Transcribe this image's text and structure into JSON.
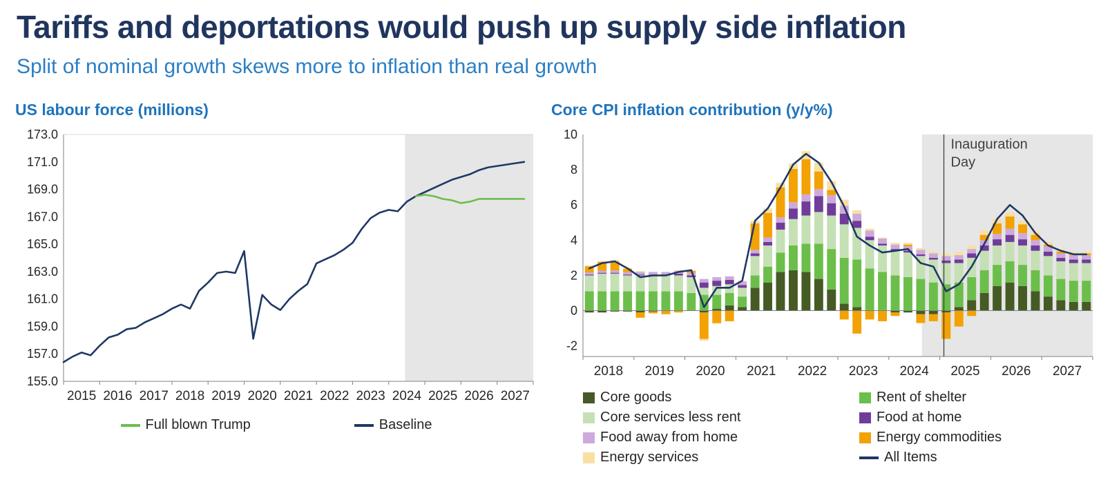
{
  "page": {
    "title": "Tariffs and deportations would push up supply side inflation",
    "subtitle": "Split of nominal growth skews more to inflation than real growth"
  },
  "colors": {
    "heading": "#20355E",
    "subtitle": "#2B7FC4",
    "chart_title": "#1F74BC",
    "forecast_shade": "#E6E6E6",
    "axis": "#808080",
    "tick_text": "#262626",
    "annotation_text": "#3F3F3F",
    "gridline": "#D9D9D9"
  },
  "chart_data": [
    {
      "type": "line",
      "title": "US labour force (millions)",
      "ylim": [
        155,
        173
      ],
      "y_ticks": [
        155,
        157,
        159,
        161,
        163,
        165,
        167,
        169,
        171,
        173
      ],
      "y_tick_decimals": 1,
      "x_range": [
        2015,
        2028
      ],
      "x_ticks": [
        2015,
        2016,
        2017,
        2018,
        2019,
        2020,
        2021,
        2022,
        2023,
        2024,
        2025,
        2026,
        2027
      ],
      "x_start": 2015,
      "x_step": 0.25,
      "forecast_start": 2024.45,
      "grid": "off",
      "legend_position": "bottom",
      "series": [
        {
          "name": "Full blown Trump",
          "color": "#6CBE4B",
          "values": [
            null,
            null,
            null,
            null,
            null,
            null,
            null,
            null,
            null,
            null,
            null,
            null,
            null,
            null,
            null,
            null,
            null,
            null,
            null,
            null,
            null,
            null,
            null,
            null,
            null,
            null,
            null,
            null,
            null,
            null,
            null,
            null,
            null,
            null,
            null,
            null,
            null,
            null,
            null,
            168.5,
            168.6,
            168.5,
            168.3,
            168.2,
            168.0,
            168.1,
            168.3,
            168.3,
            168.3,
            168.3,
            168.3,
            168.3
          ]
        },
        {
          "name": "Baseline",
          "color": "#1F3864",
          "values": [
            156.4,
            156.8,
            157.1,
            156.9,
            157.6,
            158.2,
            158.4,
            158.8,
            158.9,
            159.3,
            159.6,
            159.9,
            160.3,
            160.6,
            160.3,
            161.6,
            162.2,
            162.9,
            163.0,
            162.9,
            164.5,
            158.1,
            161.3,
            160.6,
            160.2,
            161.0,
            161.6,
            162.1,
            163.6,
            163.9,
            164.2,
            164.6,
            165.1,
            166.1,
            166.9,
            167.3,
            167.5,
            167.4,
            168.1,
            168.5,
            168.8,
            169.1,
            169.4,
            169.7,
            169.9,
            170.1,
            170.4,
            170.6,
            170.7,
            170.8,
            170.9,
            171.0
          ]
        }
      ]
    },
    {
      "type": "bar",
      "subtype": "stacked_bar_with_line",
      "title": "Core CPI inflation contribution (y/y%)",
      "ylim": [
        -2.6,
        10
      ],
      "y_ticks": [
        -2,
        0,
        2,
        4,
        6,
        8,
        10
      ],
      "y_tick_decimals": 0,
      "x_range": [
        2018,
        2028
      ],
      "x_ticks": [
        2018,
        2019,
        2020,
        2021,
        2022,
        2023,
        2024,
        2025,
        2026,
        2027
      ],
      "x_start": 2018,
      "x_step": 0.25,
      "forecast_start": 2024.65,
      "grid": "off",
      "legend_position": "bottom",
      "legend_columns": 2,
      "annotation": {
        "x": 2025.08,
        "lines": [
          "Inauguration",
          "Day"
        ]
      },
      "series": [
        {
          "name": "Core goods",
          "color": "#465A26",
          "values": [
            -0.1,
            -0.1,
            -0.05,
            -0.05,
            -0.1,
            -0.05,
            0.0,
            0.0,
            0.0,
            -0.1,
            0.1,
            0.3,
            0.2,
            1.3,
            1.6,
            2.2,
            2.3,
            2.2,
            1.8,
            1.2,
            0.4,
            0.2,
            0.0,
            0.0,
            -0.1,
            -0.1,
            -0.2,
            -0.2,
            -0.1,
            0.2,
            0.6,
            1.0,
            1.4,
            1.6,
            1.4,
            1.1,
            0.8,
            0.6,
            0.5,
            0.5
          ]
        },
        {
          "name": "Rent of shelter",
          "color": "#6CBE4B",
          "values": [
            1.1,
            1.1,
            1.1,
            1.1,
            1.1,
            1.1,
            1.1,
            1.1,
            1.0,
            0.9,
            0.8,
            0.7,
            0.6,
            0.7,
            0.9,
            1.1,
            1.4,
            1.6,
            2.0,
            2.3,
            2.6,
            2.7,
            2.4,
            2.2,
            2.0,
            1.9,
            1.8,
            1.6,
            1.5,
            1.4,
            1.3,
            1.3,
            1.2,
            1.2,
            1.2,
            1.2,
            1.2,
            1.2,
            1.2,
            1.2
          ]
        },
        {
          "name": "Core services less rent",
          "color": "#C5E0B4",
          "values": [
            0.9,
            1.0,
            1.0,
            0.9,
            0.9,
            0.9,
            0.9,
            0.9,
            0.9,
            0.4,
            0.5,
            0.5,
            0.5,
            1.1,
            1.2,
            1.3,
            1.5,
            1.6,
            1.8,
            1.9,
            1.9,
            1.8,
            1.6,
            1.5,
            1.4,
            1.4,
            1.3,
            1.3,
            1.2,
            1.1,
            1.1,
            1.1,
            1.1,
            1.1,
            1.1,
            1.1,
            1.1,
            1.0,
            1.0,
            1.0
          ]
        },
        {
          "name": "Food at home",
          "color": "#6F3D99",
          "values": [
            0.05,
            0.05,
            0.05,
            0.05,
            0.05,
            0.05,
            0.05,
            0.1,
            0.1,
            0.3,
            0.3,
            0.25,
            0.15,
            0.15,
            0.2,
            0.4,
            0.6,
            0.8,
            0.9,
            0.7,
            0.6,
            0.4,
            0.2,
            0.1,
            0.1,
            0.1,
            0.1,
            0.1,
            0.15,
            0.2,
            0.25,
            0.3,
            0.35,
            0.4,
            0.35,
            0.3,
            0.25,
            0.2,
            0.2,
            0.2
          ]
        },
        {
          "name": "Food away from home",
          "color": "#CDA9DC",
          "values": [
            0.12,
            0.12,
            0.13,
            0.13,
            0.15,
            0.15,
            0.15,
            0.15,
            0.15,
            0.2,
            0.2,
            0.2,
            0.2,
            0.2,
            0.25,
            0.3,
            0.35,
            0.4,
            0.4,
            0.45,
            0.45,
            0.4,
            0.35,
            0.3,
            0.25,
            0.25,
            0.25,
            0.25,
            0.25,
            0.25,
            0.25,
            0.3,
            0.3,
            0.35,
            0.35,
            0.3,
            0.3,
            0.25,
            0.25,
            0.25
          ]
        },
        {
          "name": "Energy commodities",
          "color": "#F2A202",
          "values": [
            0.35,
            0.5,
            0.5,
            0.2,
            -0.3,
            -0.1,
            -0.2,
            -0.1,
            0.1,
            -1.5,
            -0.7,
            -0.6,
            0.0,
            1.5,
            1.4,
            1.7,
            1.9,
            2.0,
            1.0,
            0.3,
            -0.5,
            -1.3,
            -0.5,
            -0.6,
            -0.2,
            0.1,
            -0.5,
            -0.4,
            -1.5,
            -0.9,
            -0.3,
            0.3,
            0.6,
            0.7,
            0.5,
            0.3,
            0.1,
            0.1,
            0.1,
            0.1
          ]
        },
        {
          "name": "Energy services",
          "color": "#F8E0A3",
          "values": [
            0.05,
            0.05,
            0.1,
            0.05,
            0.05,
            0.0,
            0.0,
            0.05,
            0.05,
            -0.1,
            -0.05,
            0.0,
            0.05,
            0.15,
            0.25,
            0.25,
            0.3,
            0.45,
            0.5,
            0.5,
            0.35,
            0.2,
            0.1,
            0.05,
            0.1,
            0.1,
            0.1,
            0.1,
            0.15,
            0.2,
            0.2,
            0.25,
            0.25,
            0.25,
            0.2,
            0.2,
            0.15,
            0.15,
            0.1,
            0.1
          ]
        }
      ],
      "line_series": {
        "name": "All Items",
        "color": "#1F3864",
        "values": [
          2.4,
          2.7,
          2.8,
          2.4,
          1.9,
          2.0,
          2.0,
          2.2,
          2.3,
          0.2,
          1.3,
          1.3,
          1.7,
          5.1,
          5.8,
          7.0,
          8.3,
          8.9,
          8.4,
          7.3,
          5.9,
          4.2,
          3.7,
          3.3,
          3.4,
          3.5,
          2.7,
          2.5,
          1.1,
          1.5,
          2.5,
          3.8,
          5.2,
          6.0,
          5.4,
          4.4,
          3.7,
          3.4,
          3.2,
          3.2
        ]
      }
    }
  ]
}
